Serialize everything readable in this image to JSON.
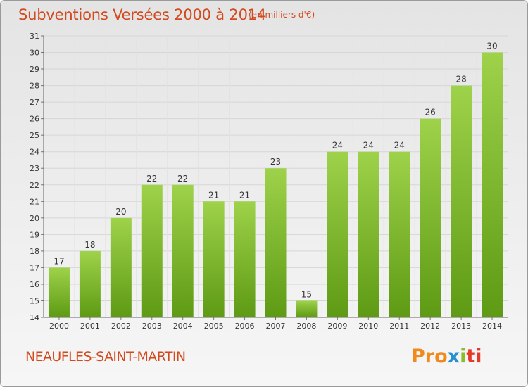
{
  "header": {
    "title": "Subventions Versées 2000 à 2014",
    "subtitle": "(en milliers d'€)"
  },
  "footer": {
    "commune": "NEAUFLES-SAINT-MARTIN",
    "logo": {
      "part1": "Pro",
      "part2": "x",
      "part3": "i",
      "part4": "ti"
    }
  },
  "colors": {
    "title": "#d24a1e",
    "bar_light": "#9ed24a",
    "bar_dark": "#5e9a14",
    "axis": "#555555"
  },
  "chart_data": {
    "type": "bar",
    "title": "Subventions Versées 2000 à 2014",
    "subtitle": "(en milliers d'€)",
    "xlabel": "",
    "ylabel": "",
    "categories": [
      "2000",
      "2001",
      "2002",
      "2003",
      "2004",
      "2005",
      "2006",
      "2007",
      "2008",
      "2009",
      "2010",
      "2011",
      "2012",
      "2013",
      "2014"
    ],
    "values": [
      17,
      18,
      20,
      22,
      22,
      21,
      21,
      23,
      15,
      24,
      24,
      24,
      26,
      28,
      30
    ],
    "ylim": [
      14,
      31
    ],
    "yticks": [
      14,
      15,
      16,
      17,
      18,
      19,
      20,
      21,
      22,
      23,
      24,
      25,
      26,
      27,
      28,
      29,
      30,
      31
    ],
    "grid": true
  }
}
